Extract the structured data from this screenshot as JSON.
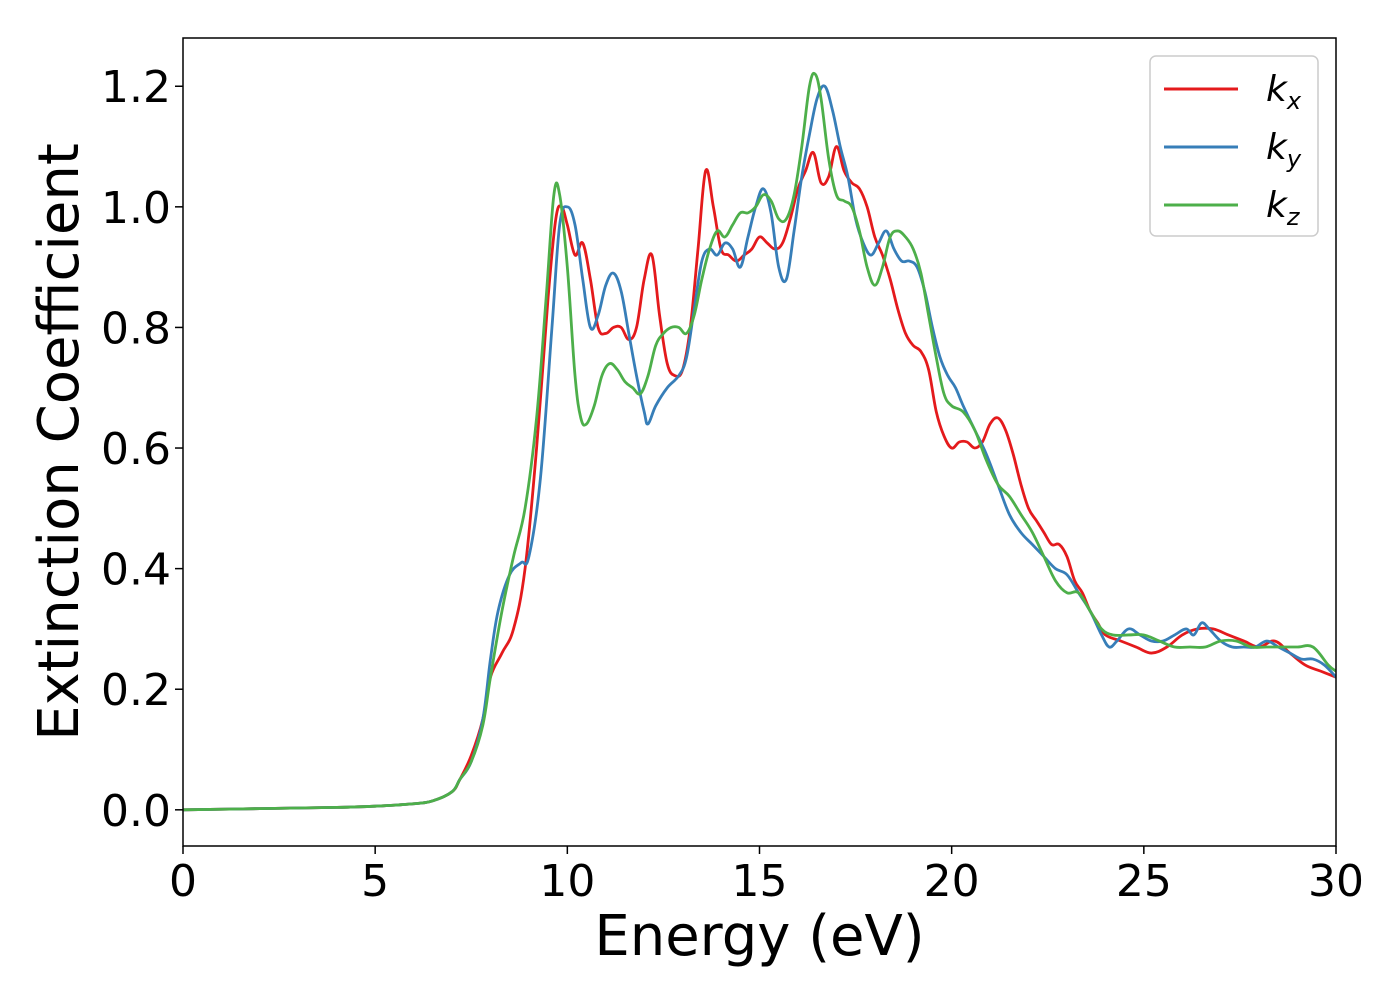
{
  "chart_data": {
    "type": "line",
    "title": "",
    "xlabel": "Energy (eV)",
    "ylabel": "Extinction Coefficient",
    "xlim": [
      0,
      30
    ],
    "ylim": [
      -0.06,
      1.28
    ],
    "xticks": [
      0,
      5,
      10,
      15,
      20,
      25,
      30
    ],
    "xtick_labels": [
      "0",
      "5",
      "10",
      "15",
      "20",
      "25",
      "30"
    ],
    "yticks": [
      0.0,
      0.2,
      0.4,
      0.6,
      0.8,
      1.0,
      1.2
    ],
    "ytick_labels": [
      "0.0",
      "0.2",
      "0.4",
      "0.6",
      "0.8",
      "1.0",
      "1.2"
    ],
    "grid": false,
    "legend_position": "top-right",
    "series": [
      {
        "name": "k",
        "subscript": "x",
        "color": "#e41a1c",
        "x": [
          0,
          2,
          4,
          5,
          6,
          6.5,
          7,
          7.2,
          7.5,
          7.8,
          8.0,
          8.3,
          8.6,
          8.9,
          9.2,
          9.5,
          9.7,
          9.85,
          10.0,
          10.2,
          10.4,
          10.6,
          10.8,
          11.0,
          11.2,
          11.4,
          11.6,
          11.8,
          12.0,
          12.2,
          12.4,
          12.6,
          12.8,
          13.0,
          13.2,
          13.4,
          13.6,
          13.8,
          14.0,
          14.2,
          14.4,
          14.6,
          14.8,
          15.0,
          15.2,
          15.4,
          15.6,
          15.8,
          16.0,
          16.2,
          16.4,
          16.6,
          16.8,
          17.0,
          17.2,
          17.4,
          17.6,
          17.8,
          18.0,
          18.2,
          18.4,
          18.6,
          18.8,
          19.0,
          19.2,
          19.4,
          19.6,
          19.8,
          20.0,
          20.2,
          20.4,
          20.6,
          20.8,
          21.0,
          21.2,
          21.4,
          21.6,
          21.8,
          22.0,
          22.2,
          22.4,
          22.6,
          22.8,
          23.0,
          23.2,
          23.4,
          23.6,
          23.8,
          24.0,
          24.4,
          24.8,
          25.2,
          25.6,
          26.0,
          26.4,
          26.8,
          27.2,
          27.6,
          28.0,
          28.4,
          28.8,
          29.2,
          29.6,
          30.0
        ],
        "y": [
          0.0,
          0.002,
          0.004,
          0.006,
          0.01,
          0.015,
          0.03,
          0.05,
          0.09,
          0.15,
          0.22,
          0.26,
          0.3,
          0.4,
          0.6,
          0.85,
          0.98,
          1.0,
          0.97,
          0.92,
          0.94,
          0.88,
          0.8,
          0.79,
          0.8,
          0.8,
          0.78,
          0.8,
          0.88,
          0.92,
          0.82,
          0.74,
          0.72,
          0.73,
          0.8,
          0.93,
          1.06,
          1.0,
          0.93,
          0.92,
          0.91,
          0.92,
          0.93,
          0.95,
          0.94,
          0.93,
          0.94,
          0.98,
          1.03,
          1.06,
          1.09,
          1.04,
          1.05,
          1.1,
          1.06,
          1.04,
          1.03,
          1.0,
          0.95,
          0.92,
          0.88,
          0.83,
          0.79,
          0.77,
          0.76,
          0.73,
          0.66,
          0.62,
          0.6,
          0.61,
          0.61,
          0.6,
          0.61,
          0.64,
          0.65,
          0.63,
          0.59,
          0.54,
          0.5,
          0.48,
          0.46,
          0.44,
          0.44,
          0.42,
          0.38,
          0.36,
          0.33,
          0.31,
          0.29,
          0.28,
          0.27,
          0.26,
          0.27,
          0.29,
          0.3,
          0.3,
          0.29,
          0.28,
          0.27,
          0.28,
          0.26,
          0.24,
          0.23,
          0.22
        ]
      },
      {
        "name": "k",
        "subscript": "y",
        "color": "#377eb8",
        "x": [
          0,
          2,
          4,
          5,
          6,
          6.5,
          7,
          7.2,
          7.5,
          7.8,
          8.0,
          8.2,
          8.5,
          8.8,
          9.0,
          9.3,
          9.6,
          9.8,
          10.0,
          10.2,
          10.4,
          10.6,
          10.8,
          11.0,
          11.2,
          11.4,
          11.6,
          11.8,
          12.0,
          12.1,
          12.3,
          12.6,
          12.9,
          13.1,
          13.3,
          13.5,
          13.7,
          13.9,
          14.1,
          14.3,
          14.5,
          14.7,
          14.9,
          15.1,
          15.3,
          15.5,
          15.7,
          15.9,
          16.1,
          16.3,
          16.5,
          16.7,
          16.9,
          17.1,
          17.3,
          17.5,
          17.7,
          17.9,
          18.1,
          18.3,
          18.5,
          18.7,
          18.9,
          19.1,
          19.3,
          19.5,
          19.7,
          19.9,
          20.1,
          20.3,
          20.6,
          20.9,
          21.2,
          21.5,
          21.8,
          22.1,
          22.4,
          22.7,
          23.0,
          23.3,
          23.6,
          23.9,
          24.1,
          24.3,
          24.6,
          24.9,
          25.2,
          25.5,
          25.8,
          26.1,
          26.3,
          26.5,
          26.7,
          27.0,
          27.3,
          27.6,
          27.9,
          28.2,
          28.5,
          28.8,
          29.1,
          29.4,
          29.7,
          30.0
        ],
        "y": [
          0.0,
          0.002,
          0.004,
          0.006,
          0.01,
          0.015,
          0.03,
          0.05,
          0.08,
          0.15,
          0.25,
          0.33,
          0.39,
          0.41,
          0.42,
          0.55,
          0.8,
          0.97,
          1.0,
          0.97,
          0.88,
          0.8,
          0.82,
          0.87,
          0.89,
          0.86,
          0.79,
          0.72,
          0.66,
          0.64,
          0.67,
          0.7,
          0.72,
          0.75,
          0.83,
          0.91,
          0.93,
          0.92,
          0.94,
          0.93,
          0.9,
          0.95,
          1.0,
          1.03,
          0.99,
          0.9,
          0.88,
          0.96,
          1.05,
          1.12,
          1.18,
          1.2,
          1.16,
          1.1,
          1.05,
          0.98,
          0.94,
          0.92,
          0.94,
          0.96,
          0.93,
          0.91,
          0.91,
          0.9,
          0.86,
          0.8,
          0.75,
          0.72,
          0.7,
          0.67,
          0.63,
          0.59,
          0.54,
          0.49,
          0.46,
          0.44,
          0.42,
          0.4,
          0.39,
          0.36,
          0.33,
          0.29,
          0.27,
          0.28,
          0.3,
          0.29,
          0.28,
          0.28,
          0.29,
          0.3,
          0.29,
          0.31,
          0.3,
          0.28,
          0.27,
          0.27,
          0.27,
          0.28,
          0.27,
          0.26,
          0.25,
          0.25,
          0.24,
          0.22
        ]
      },
      {
        "name": "k",
        "subscript": "z",
        "color": "#4daf4a",
        "x": [
          0,
          2,
          4,
          5,
          6,
          6.5,
          7,
          7.2,
          7.5,
          7.8,
          8.0,
          8.3,
          8.6,
          8.9,
          9.2,
          9.45,
          9.65,
          9.8,
          10.0,
          10.2,
          10.35,
          10.5,
          10.7,
          10.9,
          11.1,
          11.3,
          11.5,
          11.7,
          11.9,
          12.1,
          12.3,
          12.5,
          12.7,
          12.9,
          13.1,
          13.3,
          13.5,
          13.7,
          13.9,
          14.1,
          14.3,
          14.5,
          14.7,
          14.9,
          15.1,
          15.3,
          15.5,
          15.7,
          15.9,
          16.1,
          16.3,
          16.45,
          16.6,
          16.8,
          17.0,
          17.2,
          17.4,
          17.6,
          17.8,
          18.0,
          18.2,
          18.4,
          18.6,
          18.8,
          19.0,
          19.2,
          19.4,
          19.6,
          19.8,
          20.0,
          20.3,
          20.6,
          20.9,
          21.2,
          21.5,
          21.8,
          22.1,
          22.4,
          22.7,
          23.0,
          23.3,
          23.6,
          23.9,
          24.2,
          24.6,
          25.0,
          25.4,
          25.8,
          26.2,
          26.6,
          27.0,
          27.4,
          27.8,
          28.2,
          28.6,
          29.0,
          29.4,
          29.8,
          30.0
        ],
        "y": [
          0.0,
          0.002,
          0.004,
          0.006,
          0.01,
          0.015,
          0.03,
          0.05,
          0.08,
          0.14,
          0.22,
          0.33,
          0.42,
          0.5,
          0.65,
          0.85,
          1.02,
          1.02,
          0.9,
          0.72,
          0.65,
          0.64,
          0.67,
          0.72,
          0.74,
          0.73,
          0.71,
          0.7,
          0.69,
          0.72,
          0.77,
          0.79,
          0.8,
          0.8,
          0.79,
          0.82,
          0.88,
          0.93,
          0.96,
          0.95,
          0.97,
          0.99,
          0.99,
          1.0,
          1.02,
          1.01,
          0.98,
          0.98,
          1.02,
          1.1,
          1.2,
          1.22,
          1.18,
          1.08,
          1.02,
          1.01,
          1.0,
          0.96,
          0.9,
          0.87,
          0.9,
          0.95,
          0.96,
          0.95,
          0.93,
          0.89,
          0.82,
          0.75,
          0.69,
          0.67,
          0.66,
          0.63,
          0.58,
          0.54,
          0.52,
          0.49,
          0.46,
          0.42,
          0.38,
          0.36,
          0.36,
          0.33,
          0.3,
          0.29,
          0.29,
          0.29,
          0.28,
          0.27,
          0.27,
          0.27,
          0.28,
          0.28,
          0.27,
          0.27,
          0.27,
          0.27,
          0.27,
          0.24,
          0.23
        ]
      }
    ]
  }
}
